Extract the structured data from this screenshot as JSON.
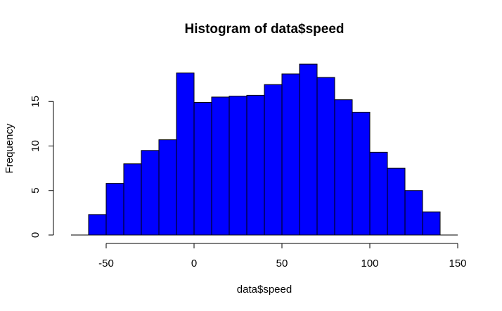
{
  "chart_data": {
    "type": "bar",
    "title": "Histogram of data$speed",
    "xlabel": "data$speed",
    "ylabel": "Frequency",
    "bar_color": "#0000ff",
    "edge_color": "#000000",
    "grid": false,
    "xlim": [
      -70,
      150
    ],
    "ylim": [
      0,
      19
    ],
    "bin_width": 10,
    "bin_edges": [
      -60,
      -50,
      -40,
      -30,
      -20,
      -10,
      0,
      10,
      20,
      30,
      40,
      50,
      60,
      70,
      80,
      90,
      100,
      110,
      120,
      130,
      140
    ],
    "values": [
      2.3,
      5.8,
      8.0,
      9.5,
      10.7,
      18.2,
      14.9,
      15.5,
      15.6,
      15.7,
      16.9,
      18.1,
      19.2,
      17.7,
      15.2,
      13.8,
      9.3,
      7.5,
      5.0,
      2.6
    ],
    "x_ticks": [
      -50,
      0,
      50,
      100,
      150
    ],
    "x_tick_labels": [
      "-50",
      "0",
      "50",
      "100",
      "150"
    ],
    "y_ticks": [
      0,
      5,
      10,
      15
    ],
    "y_tick_labels": [
      "0",
      "5",
      "10",
      "15"
    ]
  }
}
